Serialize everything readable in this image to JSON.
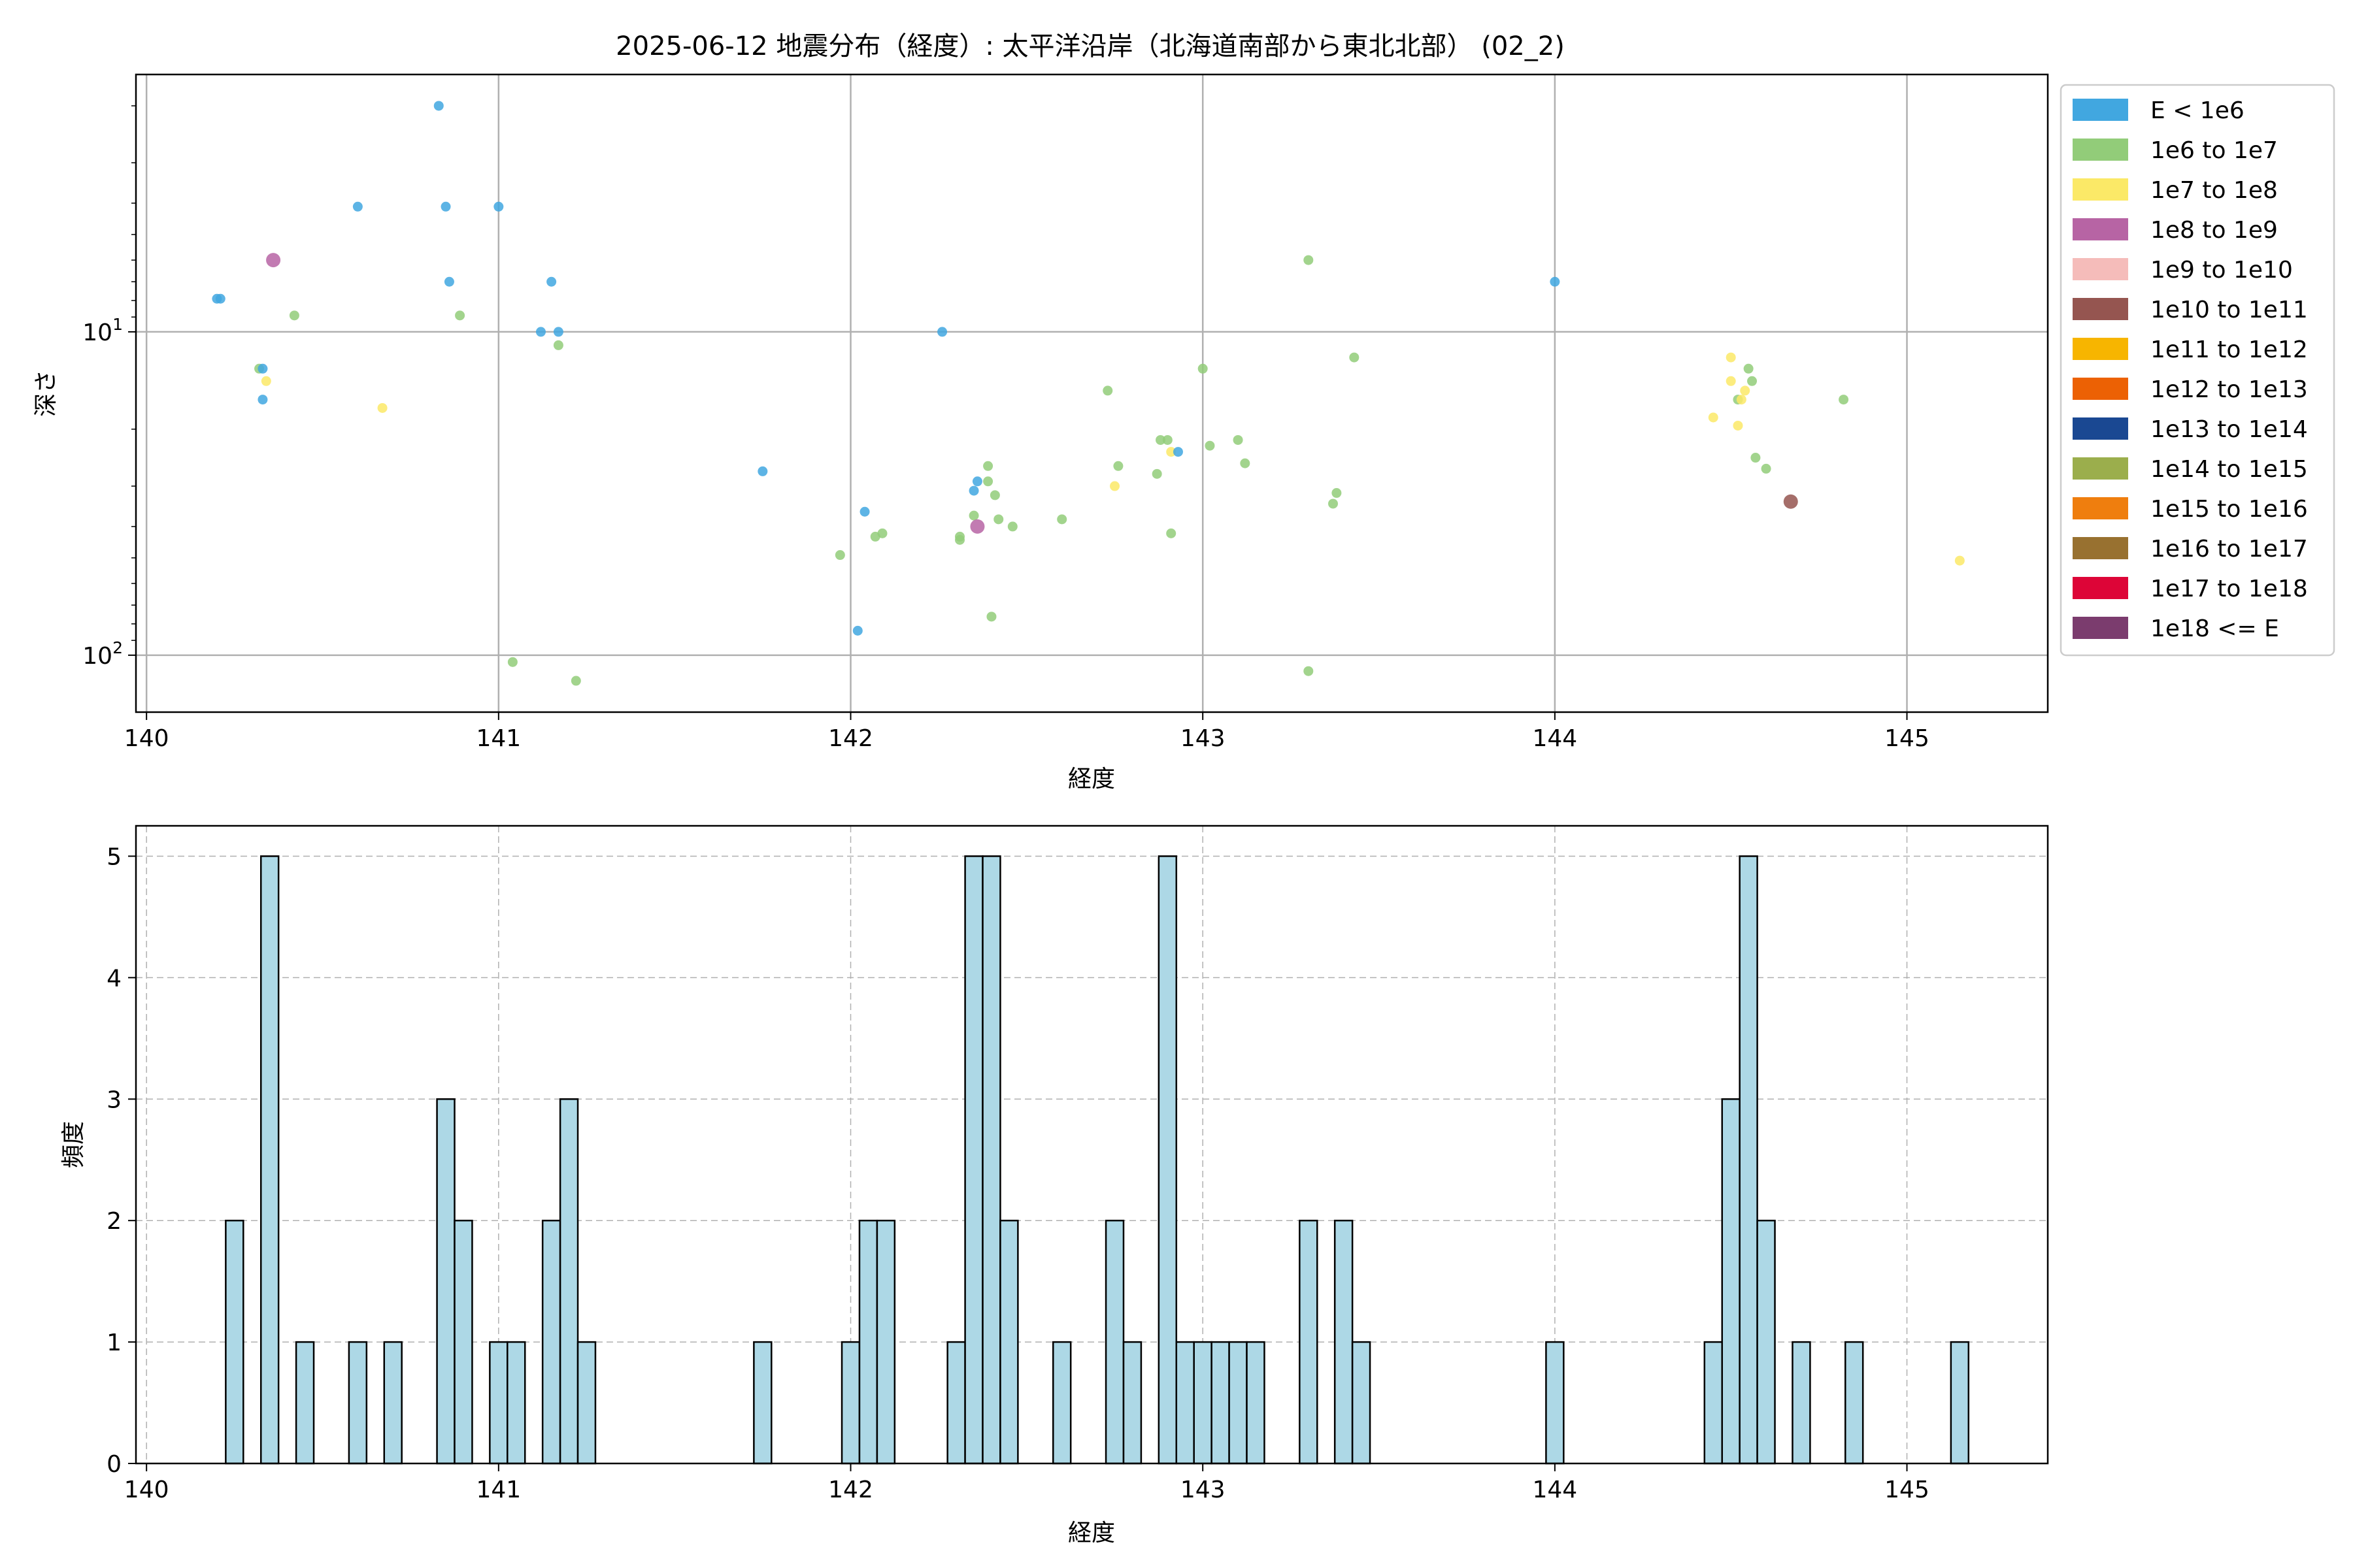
{
  "figure_title": "2025-06-12 地震分布（経度）: 太平洋沿岸（北海道南部から東北北部） (02_2)",
  "legend": [
    {
      "label": "E < 1e6",
      "color": "#41a7e0"
    },
    {
      "label": "1e6 to 1e7",
      "color": "#92cc79"
    },
    {
      "label": "1e7 to 1e8",
      "color": "#fbe967"
    },
    {
      "label": "1e8 to 1e9",
      "color": "#b764a4"
    },
    {
      "label": "1e9 to 1e10",
      "color": "#f5bcba"
    },
    {
      "label": "1e10 to 1e11",
      "color": "#955550"
    },
    {
      "label": "1e11 to 1e12",
      "color": "#f7b500"
    },
    {
      "label": "1e12 to 1e13",
      "color": "#ec6104"
    },
    {
      "label": "1e13 to 1e14",
      "color": "#1a4892"
    },
    {
      "label": "1e14 to 1e15",
      "color": "#9bae4c"
    },
    {
      "label": "1e15 to 1e16",
      "color": "#ef7e0e"
    },
    {
      "label": "1e16 to 1e17",
      "color": "#987130"
    },
    {
      "label": "1e17 to 1e18",
      "color": "#dd0537"
    },
    {
      "label": "1e18 <= E",
      "color": "#7b3c6e"
    }
  ],
  "chart_data": [
    {
      "type": "scatter",
      "xlabel": "経度",
      "ylabel": "深さ",
      "xlim": [
        139.97,
        145.4
      ],
      "ylim": [
        150,
        1.6
      ],
      "yscale": "log",
      "y_inverted": true,
      "grid": true,
      "legend_position": "right",
      "xticks": [
        "140",
        "141",
        "142",
        "143",
        "144",
        "145"
      ],
      "yticks": [
        {
          "value": 10,
          "base": "10",
          "exp": "1"
        },
        {
          "value": 100,
          "base": "10",
          "exp": "2"
        }
      ],
      "points": [
        {
          "x": 140.2,
          "y": 7.9,
          "c": 0
        },
        {
          "x": 140.21,
          "y": 7.9,
          "c": 0
        },
        {
          "x": 140.32,
          "y": 13,
          "c": 1
        },
        {
          "x": 140.33,
          "y": 13,
          "c": 0
        },
        {
          "x": 140.33,
          "y": 16.2,
          "c": 0
        },
        {
          "x": 140.34,
          "y": 14.2,
          "c": 2
        },
        {
          "x": 140.36,
          "y": 6,
          "c": 3
        },
        {
          "x": 140.42,
          "y": 8.9,
          "c": 1
        },
        {
          "x": 140.6,
          "y": 4.1,
          "c": 0
        },
        {
          "x": 140.67,
          "y": 17.2,
          "c": 2
        },
        {
          "x": 140.83,
          "y": 2,
          "c": 0
        },
        {
          "x": 140.85,
          "y": 4.1,
          "c": 0
        },
        {
          "x": 140.86,
          "y": 7,
          "c": 0
        },
        {
          "x": 140.89,
          "y": 8.9,
          "c": 1
        },
        {
          "x": 141.0,
          "y": 4.1,
          "c": 0
        },
        {
          "x": 141.04,
          "y": 105,
          "c": 1
        },
        {
          "x": 141.12,
          "y": 10,
          "c": 0
        },
        {
          "x": 141.15,
          "y": 7,
          "c": 0
        },
        {
          "x": 141.17,
          "y": 10,
          "c": 0
        },
        {
          "x": 141.17,
          "y": 11,
          "c": 1
        },
        {
          "x": 141.22,
          "y": 120,
          "c": 1
        },
        {
          "x": 141.75,
          "y": 27,
          "c": 0
        },
        {
          "x": 141.97,
          "y": 49,
          "c": 1
        },
        {
          "x": 142.02,
          "y": 84,
          "c": 0
        },
        {
          "x": 142.04,
          "y": 36,
          "c": 0
        },
        {
          "x": 142.07,
          "y": 43,
          "c": 1
        },
        {
          "x": 142.09,
          "y": 42,
          "c": 1
        },
        {
          "x": 142.26,
          "y": 10,
          "c": 0
        },
        {
          "x": 142.31,
          "y": 43,
          "c": 1
        },
        {
          "x": 142.31,
          "y": 44,
          "c": 1
        },
        {
          "x": 142.35,
          "y": 37,
          "c": 1
        },
        {
          "x": 142.35,
          "y": 31,
          "c": 0
        },
        {
          "x": 142.36,
          "y": 29,
          "c": 0
        },
        {
          "x": 142.36,
          "y": 40,
          "c": 3
        },
        {
          "x": 142.39,
          "y": 29,
          "c": 1
        },
        {
          "x": 142.39,
          "y": 26,
          "c": 1
        },
        {
          "x": 142.4,
          "y": 76,
          "c": 1
        },
        {
          "x": 142.41,
          "y": 32,
          "c": 1
        },
        {
          "x": 142.42,
          "y": 38,
          "c": 1
        },
        {
          "x": 142.46,
          "y": 40,
          "c": 1
        },
        {
          "x": 142.6,
          "y": 38,
          "c": 1
        },
        {
          "x": 142.73,
          "y": 15.2,
          "c": 1
        },
        {
          "x": 142.75,
          "y": 30,
          "c": 2
        },
        {
          "x": 142.76,
          "y": 26,
          "c": 1
        },
        {
          "x": 142.87,
          "y": 27.5,
          "c": 1
        },
        {
          "x": 142.88,
          "y": 21.6,
          "c": 1
        },
        {
          "x": 142.9,
          "y": 21.6,
          "c": 1
        },
        {
          "x": 142.91,
          "y": 23.5,
          "c": 2
        },
        {
          "x": 142.91,
          "y": 42,
          "c": 1
        },
        {
          "x": 142.93,
          "y": 23.5,
          "c": 0
        },
        {
          "x": 143.0,
          "y": 13,
          "c": 1
        },
        {
          "x": 143.02,
          "y": 22.5,
          "c": 1
        },
        {
          "x": 143.1,
          "y": 21.6,
          "c": 1
        },
        {
          "x": 143.12,
          "y": 25.5,
          "c": 1
        },
        {
          "x": 143.3,
          "y": 6,
          "c": 1
        },
        {
          "x": 143.3,
          "y": 112,
          "c": 1
        },
        {
          "x": 143.37,
          "y": 34,
          "c": 1
        },
        {
          "x": 143.38,
          "y": 31.5,
          "c": 1
        },
        {
          "x": 143.43,
          "y": 12,
          "c": 1
        },
        {
          "x": 144.0,
          "y": 7,
          "c": 0
        },
        {
          "x": 144.45,
          "y": 18.4,
          "c": 2
        },
        {
          "x": 144.5,
          "y": 12,
          "c": 2
        },
        {
          "x": 144.5,
          "y": 14.2,
          "c": 2
        },
        {
          "x": 144.52,
          "y": 16.2,
          "c": 1
        },
        {
          "x": 144.52,
          "y": 19.5,
          "c": 2
        },
        {
          "x": 144.53,
          "y": 16.2,
          "c": 2
        },
        {
          "x": 144.54,
          "y": 15.2,
          "c": 2
        },
        {
          "x": 144.55,
          "y": 13,
          "c": 1
        },
        {
          "x": 144.56,
          "y": 14.2,
          "c": 1
        },
        {
          "x": 144.57,
          "y": 24.5,
          "c": 1
        },
        {
          "x": 144.6,
          "y": 26.5,
          "c": 1
        },
        {
          "x": 144.67,
          "y": 33.5,
          "c": 5
        },
        {
          "x": 144.82,
          "y": 16.2,
          "c": 1
        },
        {
          "x": 145.15,
          "y": 51,
          "c": 2
        }
      ]
    },
    {
      "type": "bar",
      "subtype": "histogram",
      "xlabel": "経度",
      "ylabel": "頻度",
      "xlim": [
        139.97,
        145.4
      ],
      "ylim": [
        0,
        5.25
      ],
      "grid": true,
      "bin_width": 0.05,
      "bar_color": "#add8e6",
      "edge_color": "#000000",
      "xticks": [
        "140",
        "141",
        "142",
        "143",
        "144",
        "145"
      ],
      "yticks": [
        "0",
        "1",
        "2",
        "3",
        "4",
        "5"
      ],
      "bins": [
        {
          "x": 140.25,
          "count": 2
        },
        {
          "x": 140.35,
          "count": 5
        },
        {
          "x": 140.45,
          "count": 1
        },
        {
          "x": 140.6,
          "count": 1
        },
        {
          "x": 140.7,
          "count": 1
        },
        {
          "x": 140.85,
          "count": 3
        },
        {
          "x": 140.9,
          "count": 2
        },
        {
          "x": 141.0,
          "count": 1
        },
        {
          "x": 141.05,
          "count": 1
        },
        {
          "x": 141.15,
          "count": 2
        },
        {
          "x": 141.2,
          "count": 3
        },
        {
          "x": 141.25,
          "count": 1
        },
        {
          "x": 141.75,
          "count": 1
        },
        {
          "x": 142.0,
          "count": 1
        },
        {
          "x": 142.05,
          "count": 2
        },
        {
          "x": 142.1,
          "count": 2
        },
        {
          "x": 142.3,
          "count": 1
        },
        {
          "x": 142.35,
          "count": 5
        },
        {
          "x": 142.4,
          "count": 5
        },
        {
          "x": 142.45,
          "count": 2
        },
        {
          "x": 142.6,
          "count": 1
        },
        {
          "x": 142.75,
          "count": 2
        },
        {
          "x": 142.8,
          "count": 1
        },
        {
          "x": 142.9,
          "count": 5
        },
        {
          "x": 142.95,
          "count": 1
        },
        {
          "x": 143.0,
          "count": 1
        },
        {
          "x": 143.05,
          "count": 1
        },
        {
          "x": 143.1,
          "count": 1
        },
        {
          "x": 143.15,
          "count": 1
        },
        {
          "x": 143.3,
          "count": 2
        },
        {
          "x": 143.4,
          "count": 2
        },
        {
          "x": 143.45,
          "count": 1
        },
        {
          "x": 144.0,
          "count": 1
        },
        {
          "x": 144.45,
          "count": 1
        },
        {
          "x": 144.5,
          "count": 3
        },
        {
          "x": 144.55,
          "count": 5
        },
        {
          "x": 144.6,
          "count": 2
        },
        {
          "x": 144.7,
          "count": 1
        },
        {
          "x": 144.85,
          "count": 1
        },
        {
          "x": 145.15,
          "count": 1
        }
      ]
    }
  ]
}
